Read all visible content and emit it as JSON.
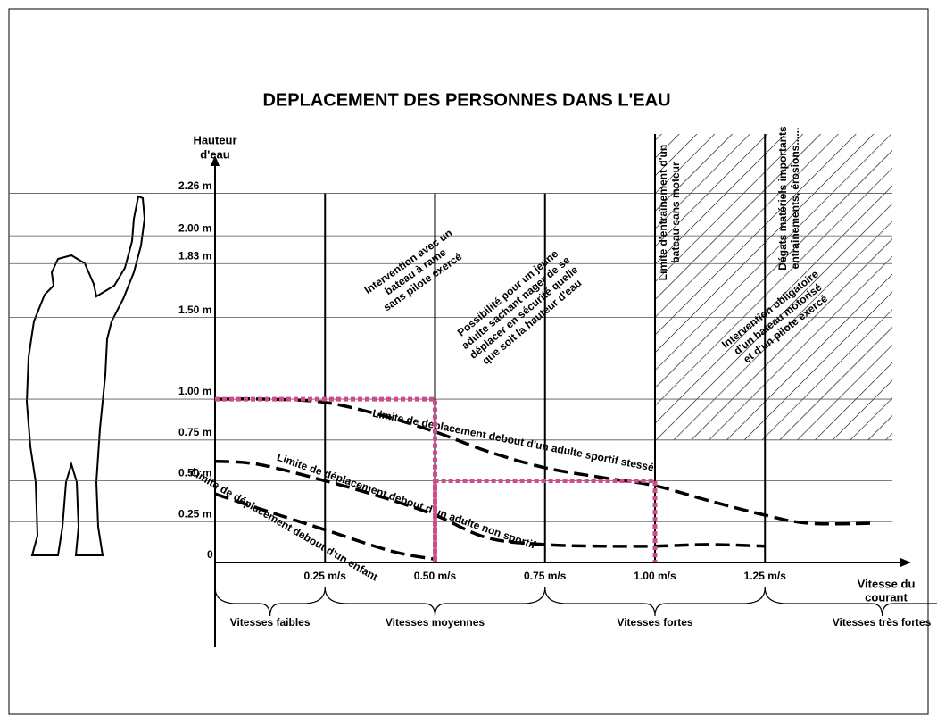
{
  "chart_data": {
    "type": "line",
    "title": "DEPLACEMENT DES PERSONNES DANS L'EAU",
    "y_label": [
      "Hauteur",
      "d'eau"
    ],
    "x_label": [
      "Vitesse du",
      "courant"
    ],
    "xlim": [
      0,
      1.57
    ],
    "ylim": [
      0,
      2.46
    ],
    "xticks": [
      {
        "value": 0.25,
        "label": "0.25 m/s"
      },
      {
        "value": 0.5,
        "label": "0.50 m/s"
      },
      {
        "value": 0.75,
        "label": "0.75 m/s"
      },
      {
        "value": 1.0,
        "label": "1.00 m/s"
      },
      {
        "value": 1.25,
        "label": "1.25 m/s"
      }
    ],
    "yticks": [
      0,
      {
        "value": 0.25,
        "label": "0.25 m"
      },
      {
        "value": 0.5,
        "label": "0.50 m"
      },
      {
        "value": 0.75,
        "label": "0.75 m"
      },
      {
        "value": 1.0,
        "label": "1.00 m"
      },
      {
        "value": 1.5,
        "label": "1.50 m"
      },
      {
        "value": 1.83,
        "label": "1.83 m"
      },
      {
        "value": 2.0,
        "label": "2.00 m"
      },
      {
        "value": 2.26,
        "label": "2.26 m"
      }
    ],
    "grid": true,
    "series": [
      {
        "name": "Limite de déplacement debout d'un adulte sportif stessé",
        "color": "#000000",
        "x": [
          0,
          0.12,
          0.25,
          0.38,
          0.5,
          0.62,
          0.75,
          0.88,
          1.0,
          1.12,
          1.25,
          1.35,
          1.5
        ],
        "values": [
          1.0,
          1.0,
          0.98,
          0.9,
          0.8,
          0.68,
          0.58,
          0.52,
          0.47,
          0.38,
          0.29,
          0.24,
          0.24
        ]
      },
      {
        "name": "Limite de déplacement debout d'un adulte non sportif",
        "color": "#000000",
        "x": [
          0,
          0.1,
          0.25,
          0.38,
          0.5,
          0.62,
          0.75,
          0.88,
          1.0,
          1.12,
          1.25
        ],
        "values": [
          0.62,
          0.6,
          0.5,
          0.4,
          0.29,
          0.15,
          0.11,
          0.1,
          0.1,
          0.11,
          0.1
        ]
      },
      {
        "name": "Limite de déplacement debout d'un enfant",
        "color": "#000000",
        "x": [
          0,
          0.1,
          0.25,
          0.4,
          0.5
        ],
        "values": [
          0.42,
          0.33,
          0.2,
          0.07,
          0.02
        ]
      },
      {
        "color": "#d04a8c",
        "x": [
          0,
          0.5,
          0.5,
          0.5,
          1.0,
          1.0
        ],
        "values": [
          1.0,
          1.0,
          0,
          0.5,
          0.5,
          0
        ]
      }
    ],
    "annotations": [
      {
        "lines": [
          "Intervention avec un",
          "bateau à rame",
          "sans pilote exercé"
        ]
      },
      {
        "lines": [
          "Possibilité pour un jeune",
          "adulte sachant nager de se",
          "déplacer en sécurité quelle",
          "que soit la hauteur d'eau"
        ]
      },
      {
        "lines": [
          "Limite d'entraînement d'un",
          "bateau sans moteur"
        ]
      },
      {
        "lines": [
          "Dégats matériels importants",
          "entraînements, érosions......"
        ]
      },
      {
        "lines": [
          "Intervention obligatoire",
          "d'un bateau motorisé",
          "et d'un pilote exercé"
        ]
      }
    ],
    "zones": [
      "Vitesses faibles",
      "Vitesses moyennes",
      "Vitesses fortes",
      "Vitesses très fortes"
    ]
  }
}
